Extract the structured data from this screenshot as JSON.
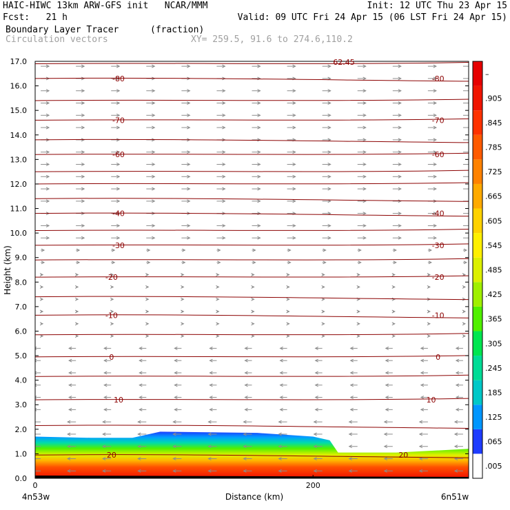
{
  "header": {
    "line1_left": "HAIC-HIWC 13km ARW-GFS init   NCAR/MMM",
    "line1_right": "Init: 12 UTC Thu 23 Apr 15",
    "line2_left": "Fcst:   21 h",
    "line2_right": "Valid: 09 UTC Fri 24 Apr 15 (06 LST Fri 24 Apr 15)",
    "field_name": "Boundary Layer Tracer",
    "field_units": "(fraction)",
    "vector_name": "Circulation vectors",
    "xy_range": "XY= 259.5, 91.6 to 274.6,110.2"
  },
  "chart_data": {
    "type": "heatmap",
    "title": "Boundary Layer Tracer",
    "xlabel": "Distance (km)",
    "ylabel": "Height (km)",
    "xlim": [
      0,
      312
    ],
    "ylim": [
      0,
      17
    ],
    "x_ticks": [
      0,
      200
    ],
    "y_ticks": [
      "0.0",
      "1.0",
      "2.0",
      "3.0",
      "4.0",
      "5.0",
      "6.0",
      "7.0",
      "8.0",
      "9.0",
      "10.0",
      "11.0",
      "12.0",
      "13.0",
      "14.0",
      "15.0",
      "16.0",
      "17.0"
    ],
    "x_endpoint_labels": [
      "4n53w",
      "6n51w"
    ],
    "colorbar": {
      "labels": [
        ".005",
        ".065",
        ".125",
        ".185",
        ".245",
        ".305",
        ".365",
        ".425",
        ".485",
        ".545",
        ".605",
        ".665",
        ".725",
        ".785",
        ".845",
        ".905",
        "–"
      ],
      "colors": [
        "#ffffff",
        "#1e3cff",
        "#0096ff",
        "#00c8c8",
        "#00dc96",
        "#00e650",
        "#50f000",
        "#a0f000",
        "#dcf000",
        "#fff000",
        "#ffd200",
        "#ffaa00",
        "#ff8200",
        "#ff5a00",
        "#ff3200",
        "#f01400",
        "#e60000"
      ]
    },
    "boundary_layer_top_km": [
      {
        "x": 0,
        "top": 1.7
      },
      {
        "x": 40,
        "top": 1.65
      },
      {
        "x": 70,
        "top": 1.65
      },
      {
        "x": 90,
        "top": 1.9
      },
      {
        "x": 160,
        "top": 1.85
      },
      {
        "x": 200,
        "top": 1.7
      },
      {
        "x": 212,
        "top": 1.55
      },
      {
        "x": 218,
        "top": 1.05
      },
      {
        "x": 260,
        "top": 1.05
      },
      {
        "x": 312,
        "top": 1.2
      }
    ],
    "temperature_contours": [
      {
        "value": "-80",
        "height_km": 16.3,
        "label_x": [
          60,
          290
        ]
      },
      {
        "value": "-70",
        "height_km": 14.6,
        "label_x": [
          60,
          290
        ]
      },
      {
        "value": "-60",
        "height_km": 13.2,
        "label_x": [
          60,
          290
        ]
      },
      {
        "value": "-40",
        "height_km": 10.8,
        "label_x": [
          60,
          290
        ]
      },
      {
        "value": "-30",
        "height_km": 9.5,
        "label_x": [
          60,
          290
        ]
      },
      {
        "value": "-20",
        "height_km": 8.2,
        "label_x": [
          55,
          290
        ]
      },
      {
        "value": "-10",
        "height_km": 6.65,
        "label_x": [
          55,
          290
        ]
      },
      {
        "value": "0",
        "height_km": 4.95,
        "label_x": [
          55,
          290
        ]
      },
      {
        "value": "10",
        "height_km": 3.2,
        "label_x": [
          60,
          285
        ]
      },
      {
        "value": "20",
        "height_km": 0.95,
        "label_x": [
          55,
          265
        ]
      }
    ],
    "top_label": "62.45",
    "unlabeled_contour_heights_km": [
      16.9,
      15.4,
      13.8,
      12.5,
      12.0,
      11.4,
      10.1,
      8.9,
      7.4,
      5.85,
      4.15,
      2.15
    ]
  }
}
